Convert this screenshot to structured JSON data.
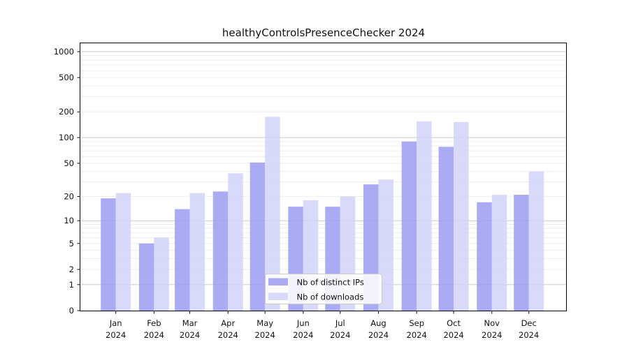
{
  "chart_data": {
    "type": "bar",
    "title": "healthyControlsPresenceChecker 2024",
    "year_label": "2024",
    "categories": [
      "Jan 2024",
      "Feb 2024",
      "Mar 2024",
      "Apr 2024",
      "May 2024",
      "Jun 2024",
      "Jul 2024",
      "Aug 2024",
      "Sep 2024",
      "Oct 2024",
      "Nov 2024",
      "Dec 2024"
    ],
    "month_labels": [
      "Jan",
      "Feb",
      "Mar",
      "Apr",
      "May",
      "Jun",
      "Jul",
      "Aug",
      "Sep",
      "Oct",
      "Nov",
      "Dec"
    ],
    "series": [
      {
        "name": "Nb of distinct IPs",
        "color": "#9c9cf2",
        "values": [
          19,
          5,
          14,
          23,
          51,
          15,
          15,
          28,
          90,
          78,
          17,
          21
        ]
      },
      {
        "name": "Nb of downloads",
        "color": "#d2d2f9",
        "values": [
          22,
          6,
          22,
          38,
          175,
          18,
          20,
          32,
          155,
          152,
          21,
          40
        ]
      }
    ],
    "y_axis": {
      "scale": "log1p",
      "tick_values": [
        0,
        1,
        2,
        5,
        10,
        20,
        50,
        100,
        200,
        500,
        1000
      ],
      "tick_labels": [
        "0",
        "1",
        "2",
        "5",
        "10",
        "20",
        "50",
        "100",
        "200",
        "500",
        "1000"
      ],
      "ylim": [
        0,
        1275
      ],
      "major_gridlines_at": [
        1,
        10,
        100,
        1000
      ],
      "minor_gridlines_at": [
        2,
        3,
        4,
        5,
        6,
        7,
        8,
        9,
        20,
        30,
        40,
        50,
        60,
        70,
        80,
        90,
        200,
        300,
        400,
        500,
        600,
        700,
        800,
        900
      ]
    },
    "x_axis": {
      "unit": "month",
      "year": 2024
    },
    "legend": {
      "position": "lower-center",
      "labels": [
        "Nb of distinct IPs",
        "Nb of downloads"
      ]
    },
    "grid": "horizontal"
  },
  "colors": {
    "background": "#ffffff",
    "bar_distinct_ips": "#9c9cf2",
    "bar_downloads": "#d2d2f9",
    "grid_major": "#cbcbcb",
    "grid_minor": "#ededed",
    "axis_line": "#000000",
    "text": "#111111",
    "legend_border": "#cccccc",
    "legend_background": "#ffffff"
  }
}
